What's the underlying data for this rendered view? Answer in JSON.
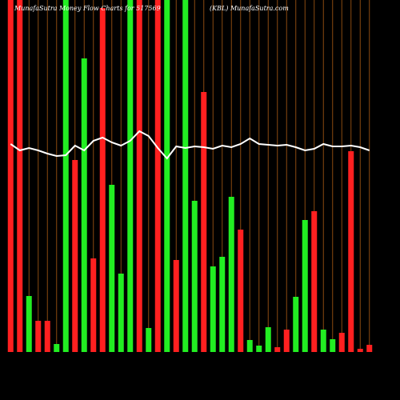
{
  "chart_data": {
    "type": "bar",
    "title": "MunafaSutra  Money Flow  Charts for 517569",
    "subtitle": "(KBL) MunafaSutra.com",
    "categories": [
      null,
      null,
      null,
      null,
      null,
      null,
      null,
      null,
      null,
      null,
      null,
      null,
      null,
      null,
      null,
      null,
      null,
      null,
      null,
      null,
      null,
      null,
      null,
      null,
      null,
      null,
      null,
      null,
      null,
      null,
      null,
      null,
      null,
      null,
      null,
      null,
      null,
      null,
      null,
      null
    ],
    "series": [
      {
        "type": "bar",
        "values": [
          440,
          440,
          70,
          39,
          39,
          10,
          440,
          240,
          367,
          117,
          430,
          209,
          98,
          440,
          440,
          30,
          440,
          440,
          115,
          440,
          189,
          325,
          107,
          119,
          194,
          153,
          15,
          8,
          31,
          6,
          28,
          69,
          165,
          176,
          28,
          16,
          24,
          251,
          4,
          9
        ],
        "colors": [
          "#ff2020",
          "#ff2020",
          "#22ee22",
          "#ff2020",
          "#ff2020",
          "#22ee22",
          "#22ee22",
          "#ff2020",
          "#22ee22",
          "#ff2020",
          "#ff2020",
          "#22ee22",
          "#22ee22",
          "#22ee22",
          "#ff2020",
          "#22ee22",
          "#ff2020",
          "#22ee22",
          "#ff2020",
          "#22ee22",
          "#22ee22",
          "#ff2020",
          "#22ee22",
          "#22ee22",
          "#22ee22",
          "#ff2020",
          "#22ee22",
          "#22ee22",
          "#22ee22",
          "#ff2020",
          "#ff2020",
          "#22ee22",
          "#22ee22",
          "#ff2020",
          "#22ee22",
          "#22ee22",
          "#ff2020",
          "#ff2020",
          "#ff2020",
          "#ff2020"
        ]
      },
      {
        "type": "line",
        "color": "#ffffff",
        "values": [
          260,
          252,
          255,
          252,
          248,
          245,
          246,
          258,
          252,
          264,
          268,
          262,
          258,
          264,
          276,
          270,
          255,
          242,
          257,
          255,
          257,
          256,
          254,
          258,
          256,
          260,
          267,
          260,
          259,
          258,
          259,
          256,
          252,
          254,
          260,
          257,
          257,
          258,
          256,
          252
        ]
      }
    ],
    "ylim": [
      0,
      440
    ],
    "grid_color": "#8a4a10"
  }
}
